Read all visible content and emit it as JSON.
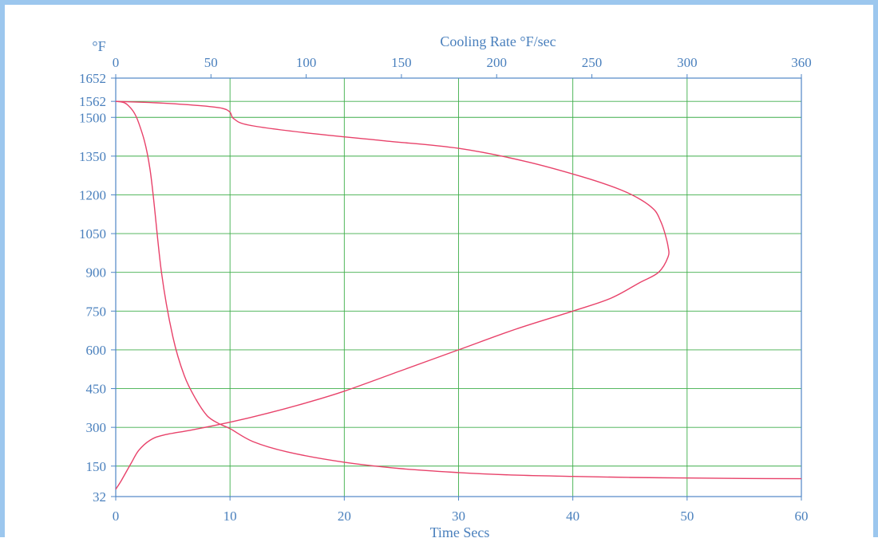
{
  "chart_data": {
    "type": "line",
    "title": "",
    "colors": {
      "grid": "#3fae4a",
      "frame": "#4f86c6",
      "curve": "#e8426a",
      "text": "#4a80bd",
      "page_border": "#9cc7ee"
    },
    "axes": {
      "left": {
        "label": "°F",
        "range": [
          32,
          1652
        ],
        "ticks": [
          32,
          150,
          300,
          450,
          600,
          750,
          900,
          1050,
          1200,
          1350,
          1500,
          1562,
          1652
        ],
        "tick_labels": [
          "32",
          "150",
          "300",
          "450",
          "600",
          "750",
          "900",
          "1050",
          "1200",
          "1350",
          "1500",
          "1562",
          "1652"
        ]
      },
      "bottom": {
        "label": "Time  Secs",
        "range": [
          0,
          60
        ],
        "ticks": [
          0,
          10,
          20,
          30,
          40,
          50,
          60
        ],
        "tick_labels": [
          "0",
          "10",
          "20",
          "30",
          "40",
          "50",
          "60"
        ]
      },
      "top": {
        "label": "Cooling Rate  °F/sec",
        "range": [
          0,
          360
        ],
        "ticks": [
          0,
          50,
          100,
          150,
          200,
          250,
          300,
          360
        ],
        "tick_labels": [
          "0",
          "50",
          "100",
          "150",
          "200",
          "250",
          "300",
          "360"
        ]
      }
    },
    "grid": true,
    "series": [
      {
        "x_axis": "bottom",
        "points": [
          [
            0,
            1562
          ],
          [
            1,
            1550
          ],
          [
            2,
            1480
          ],
          [
            3,
            1300
          ],
          [
            4,
            900
          ],
          [
            5,
            650
          ],
          [
            6,
            500
          ],
          [
            7,
            410
          ],
          [
            8,
            345
          ],
          [
            9,
            315
          ],
          [
            10,
            295
          ],
          [
            12,
            245
          ],
          [
            15,
            205
          ],
          [
            20,
            165
          ],
          [
            25,
            140
          ],
          [
            30,
            125
          ],
          [
            35,
            115
          ],
          [
            40,
            110
          ],
          [
            45,
            106
          ],
          [
            50,
            104
          ],
          [
            55,
            102
          ],
          [
            60,
            101
          ]
        ]
      },
      {
        "x_axis": "top",
        "points": [
          [
            0,
            60
          ],
          [
            3,
            95
          ],
          [
            8,
            160
          ],
          [
            12,
            210
          ],
          [
            18,
            250
          ],
          [
            25,
            270
          ],
          [
            40,
            290
          ],
          [
            60,
            320
          ],
          [
            80,
            355
          ],
          [
            100,
            395
          ],
          [
            120,
            440
          ],
          [
            150,
            520
          ],
          [
            180,
            600
          ],
          [
            210,
            680
          ],
          [
            240,
            750
          ],
          [
            260,
            800
          ],
          [
            275,
            860
          ],
          [
            285,
            900
          ],
          [
            290,
            960
          ],
          [
            290,
            1000
          ],
          [
            288,
            1060
          ],
          [
            286,
            1100
          ],
          [
            283,
            1140
          ],
          [
            276,
            1180
          ],
          [
            265,
            1220
          ],
          [
            245,
            1270
          ],
          [
            215,
            1330
          ],
          [
            180,
            1380
          ],
          [
            140,
            1410
          ],
          [
            100,
            1440
          ],
          [
            70,
            1470
          ],
          [
            62,
            1495
          ],
          [
            60,
            1520
          ],
          [
            56,
            1535
          ],
          [
            45,
            1545
          ],
          [
            25,
            1555
          ],
          [
            0,
            1562
          ]
        ]
      }
    ]
  }
}
